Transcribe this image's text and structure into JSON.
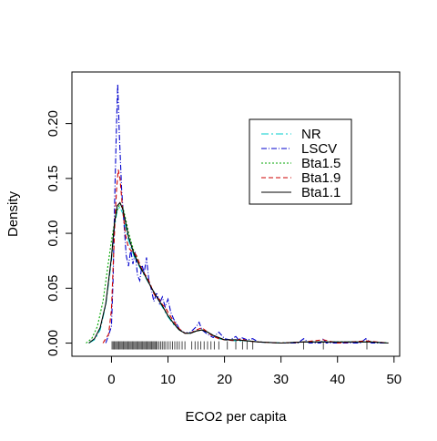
{
  "chart_data": {
    "type": "line",
    "title": "",
    "xlabel": "ECO2 per capita",
    "ylabel": "Density",
    "xlim": [
      -7,
      51
    ],
    "ylim": [
      -0.012,
      0.247
    ],
    "xticks": [
      0,
      10,
      20,
      30,
      40,
      50
    ],
    "yticks": [
      0.0,
      0.05,
      0.1,
      0.15,
      0.2
    ],
    "xtick_labels": [
      "0",
      "10",
      "20",
      "30",
      "40",
      "50"
    ],
    "ytick_labels": [
      "0.00",
      "0.05",
      "0.10",
      "0.15",
      "0.20"
    ],
    "grid": false,
    "legend_position": "top-right",
    "series": [
      {
        "name": "NR",
        "color": "#00CDCD",
        "dash": "8,3,2,3",
        "x": [
          -4,
          -3,
          -2,
          -1,
          0,
          0.5,
          1,
          1.5,
          2,
          2.5,
          3,
          4,
          5,
          6,
          7,
          8,
          9,
          10,
          11,
          12,
          13,
          14,
          15,
          16,
          17,
          18,
          19,
          20,
          22,
          24,
          26,
          30,
          34,
          38,
          42,
          46,
          49
        ],
        "y": [
          0.0,
          0.003,
          0.012,
          0.035,
          0.075,
          0.105,
          0.121,
          0.124,
          0.118,
          0.106,
          0.094,
          0.079,
          0.069,
          0.06,
          0.051,
          0.042,
          0.033,
          0.024,
          0.017,
          0.012,
          0.009,
          0.009,
          0.011,
          0.012,
          0.01,
          0.007,
          0.004,
          0.003,
          0.002,
          0.002,
          0.001,
          0.0,
          0.001,
          0.001,
          0.001,
          0.001,
          0.0
        ]
      },
      {
        "name": "LSCV",
        "color": "#0000CD",
        "dash": "6,2,1,2",
        "x": [
          -1,
          0,
          0.3,
          0.6,
          0.9,
          1.1,
          1.4,
          1.8,
          2.2,
          2.6,
          3.0,
          3.4,
          3.8,
          4.2,
          4.6,
          5.0,
          5.4,
          5.8,
          6.2,
          6.6,
          7.0,
          7.5,
          8.0,
          8.5,
          9.0,
          9.5,
          10.0,
          10.5,
          11,
          11.5,
          12,
          13,
          14,
          15,
          15.5,
          16,
          17,
          18,
          19,
          20,
          21,
          22,
          22.5,
          23,
          24,
          25,
          26,
          30,
          33,
          34,
          35,
          37,
          37.5,
          38,
          44,
          45,
          46,
          49
        ],
        "y": [
          0.0,
          0.015,
          0.06,
          0.14,
          0.2,
          0.236,
          0.19,
          0.14,
          0.11,
          0.08,
          0.07,
          0.085,
          0.072,
          0.083,
          0.062,
          0.057,
          0.071,
          0.064,
          0.078,
          0.058,
          0.05,
          0.038,
          0.046,
          0.036,
          0.042,
          0.033,
          0.04,
          0.028,
          0.022,
          0.018,
          0.013,
          0.009,
          0.01,
          0.015,
          0.019,
          0.012,
          0.008,
          0.005,
          0.01,
          0.004,
          0.003,
          0.006,
          0.003,
          0.005,
          0.003,
          0.004,
          0.001,
          0.0,
          0.0,
          0.004,
          0.0,
          0.0,
          0.004,
          0.0,
          0.0,
          0.004,
          0.0,
          0.0
        ]
      },
      {
        "name": "Bta1.5",
        "color": "#00A600",
        "dash": "2,2",
        "x": [
          -4.5,
          -3.5,
          -2.5,
          -1.5,
          -0.5,
          0,
          0.5,
          1,
          1.5,
          2,
          2.5,
          3,
          4,
          5,
          6,
          7,
          8,
          9,
          10,
          11,
          12,
          13,
          14,
          15,
          16,
          17,
          18,
          19,
          20,
          22,
          24,
          26,
          30,
          34,
          38,
          42,
          46,
          49
        ],
        "y": [
          0.0,
          0.004,
          0.015,
          0.038,
          0.075,
          0.093,
          0.109,
          0.121,
          0.127,
          0.124,
          0.113,
          0.101,
          0.083,
          0.071,
          0.061,
          0.051,
          0.042,
          0.034,
          0.025,
          0.018,
          0.012,
          0.009,
          0.009,
          0.011,
          0.012,
          0.01,
          0.007,
          0.005,
          0.003,
          0.003,
          0.002,
          0.001,
          0.0,
          0.001,
          0.001,
          0.001,
          0.001,
          0.0
        ]
      },
      {
        "name": "Bta1.9",
        "color": "#CD0000",
        "dash": "5,3",
        "x": [
          -1.5,
          -0.5,
          0,
          0.3,
          0.6,
          0.9,
          1.2,
          1.5,
          2.0,
          2.5,
          3.0,
          3.5,
          4.0,
          4.5,
          5.0,
          5.5,
          6.0,
          6.5,
          7.0,
          7.5,
          8.0,
          8.5,
          9.0,
          9.5,
          10,
          11,
          12,
          13,
          14,
          15,
          16,
          17,
          18,
          19,
          20,
          22,
          23,
          24,
          26,
          30,
          34,
          37.5,
          40,
          45,
          49
        ],
        "y": [
          0.0,
          0.008,
          0.03,
          0.07,
          0.11,
          0.14,
          0.158,
          0.15,
          0.12,
          0.098,
          0.087,
          0.084,
          0.083,
          0.079,
          0.072,
          0.066,
          0.062,
          0.058,
          0.052,
          0.045,
          0.041,
          0.04,
          0.035,
          0.033,
          0.028,
          0.02,
          0.013,
          0.009,
          0.009,
          0.012,
          0.014,
          0.01,
          0.006,
          0.004,
          0.003,
          0.002,
          0.004,
          0.002,
          0.001,
          0.0,
          0.001,
          0.003,
          0.0,
          0.002,
          0.0
        ]
      },
      {
        "name": "Bta1.1",
        "color": "#000000",
        "dash": "",
        "x": [
          -4,
          -3,
          -2,
          -1,
          0,
          0.5,
          1,
          1.5,
          2,
          2.5,
          3,
          4,
          5,
          6,
          7,
          8,
          9,
          10,
          11,
          12,
          13,
          14,
          15,
          16,
          17,
          18,
          19,
          20,
          22,
          24,
          26,
          30,
          34,
          38,
          42,
          46,
          49
        ],
        "y": [
          0.0,
          0.004,
          0.014,
          0.036,
          0.078,
          0.108,
          0.125,
          0.128,
          0.122,
          0.11,
          0.097,
          0.081,
          0.07,
          0.061,
          0.051,
          0.042,
          0.034,
          0.025,
          0.018,
          0.012,
          0.009,
          0.009,
          0.011,
          0.012,
          0.01,
          0.007,
          0.005,
          0.003,
          0.003,
          0.002,
          0.001,
          0.0,
          0.001,
          0.001,
          0.001,
          0.001,
          0.0
        ]
      }
    ],
    "rug": [
      0.1,
      0.3,
      0.5,
      0.7,
      0.9,
      1.1,
      1.3,
      1.5,
      1.7,
      1.9,
      2.1,
      2.3,
      2.5,
      2.7,
      2.9,
      3.1,
      3.3,
      3.5,
      3.7,
      3.9,
      4.1,
      4.3,
      4.5,
      4.7,
      4.9,
      5.1,
      5.3,
      5.5,
      5.7,
      5.9,
      6.1,
      6.3,
      6.5,
      6.7,
      6.9,
      7.1,
      7.3,
      7.5,
      7.7,
      7.9,
      8.1,
      8.4,
      8.7,
      9.0,
      9.3,
      9.6,
      10.0,
      10.4,
      10.8,
      11.2,
      11.6,
      12.0,
      12.5,
      13.0,
      14.2,
      14.8,
      15.3,
      15.8,
      16.4,
      17.0,
      17.6,
      18.2,
      19.0,
      20.5,
      22.0,
      23.2,
      24.0,
      25.0,
      34.0,
      37.5,
      45.2
    ]
  }
}
